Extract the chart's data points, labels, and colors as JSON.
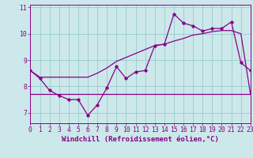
{
  "xlabel": "Windchill (Refroidissement éolien,°C)",
  "bg_color": "#cce8ea",
  "line_color": "#880088",
  "grid_color": "#99cccc",
  "x_values": [
    0,
    1,
    2,
    3,
    4,
    5,
    6,
    7,
    8,
    9,
    10,
    11,
    12,
    13,
    14,
    15,
    16,
    17,
    18,
    19,
    20,
    21,
    22,
    23
  ],
  "y_line1": [
    8.6,
    8.3,
    7.85,
    7.65,
    7.5,
    7.5,
    6.9,
    7.3,
    7.95,
    8.75,
    8.3,
    8.55,
    8.6,
    9.55,
    9.6,
    10.75,
    10.4,
    10.3,
    10.1,
    10.2,
    10.2,
    10.45,
    8.9,
    8.6
  ],
  "y_line2": [
    8.6,
    8.35,
    8.35,
    8.35,
    8.35,
    8.35,
    8.35,
    8.5,
    8.7,
    8.95,
    9.1,
    9.25,
    9.4,
    9.55,
    9.6,
    9.72,
    9.82,
    9.95,
    10.0,
    10.08,
    10.12,
    10.12,
    10.0,
    7.7
  ],
  "y_hline": 7.7,
  "xlim": [
    0,
    23
  ],
  "ylim": [
    6.6,
    11.1
  ],
  "yticks": [
    7,
    8,
    9,
    10,
    11
  ],
  "figsize": [
    3.2,
    2.0
  ],
  "dpi": 100,
  "xlabel_fontsize": 6.5,
  "tick_fontsize": 5.8
}
